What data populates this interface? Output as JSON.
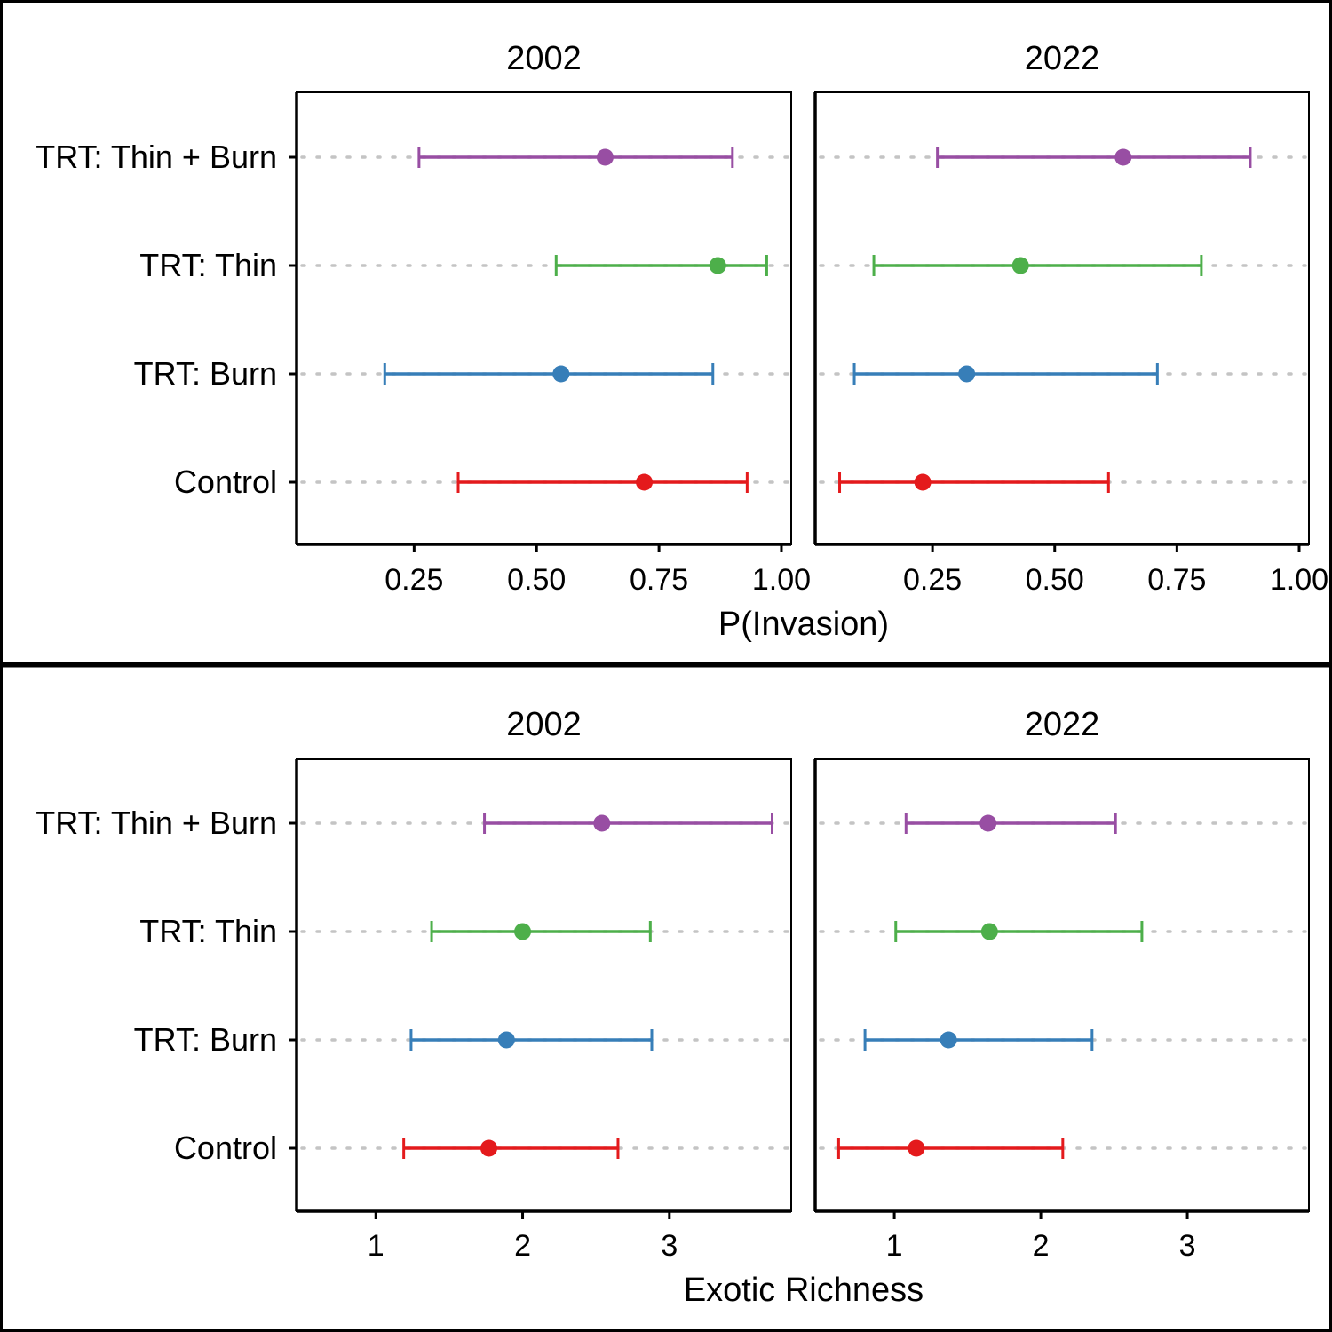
{
  "chart_data": [
    {
      "type": "scatter",
      "xlabel": "P(Invasion)",
      "categories": [
        "Control",
        "TRT: Burn",
        "TRT: Thin",
        "TRT: Thin + Burn"
      ],
      "xticks": [
        0.25,
        0.5,
        0.75,
        1.0
      ],
      "xtick_labels": [
        "0.25",
        "0.50",
        "0.75",
        "1.00"
      ],
      "xlim": [
        0.01,
        1.02
      ],
      "facets": [
        {
          "title": "2002",
          "points": [
            {
              "category": "Control",
              "estimate": 0.72,
              "lower": 0.34,
              "upper": 0.93
            },
            {
              "category": "TRT: Burn",
              "estimate": 0.55,
              "lower": 0.19,
              "upper": 0.86
            },
            {
              "category": "TRT: Thin",
              "estimate": 0.87,
              "lower": 0.54,
              "upper": 0.97
            },
            {
              "category": "TRT: Thin + Burn",
              "estimate": 0.64,
              "lower": 0.26,
              "upper": 0.9
            }
          ]
        },
        {
          "title": "2022",
          "points": [
            {
              "category": "Control",
              "estimate": 0.23,
              "lower": 0.06,
              "upper": 0.61
            },
            {
              "category": "TRT: Burn",
              "estimate": 0.32,
              "lower": 0.09,
              "upper": 0.71
            },
            {
              "category": "TRT: Thin",
              "estimate": 0.43,
              "lower": 0.13,
              "upper": 0.8
            },
            {
              "category": "TRT: Thin + Burn",
              "estimate": 0.64,
              "lower": 0.26,
              "upper": 0.9
            }
          ]
        }
      ]
    },
    {
      "type": "scatter",
      "xlabel": "Exotic Richness",
      "categories": [
        "Control",
        "TRT: Burn",
        "TRT: Thin",
        "TRT: Thin + Burn"
      ],
      "xticks": [
        1,
        2,
        3
      ],
      "xtick_labels": [
        "1",
        "2",
        "3"
      ],
      "xlim": [
        0.46,
        3.83
      ],
      "facets": [
        {
          "title": "2002",
          "points": [
            {
              "category": "Control",
              "estimate": 1.77,
              "lower": 1.19,
              "upper": 2.65
            },
            {
              "category": "TRT: Burn",
              "estimate": 1.89,
              "lower": 1.24,
              "upper": 2.88
            },
            {
              "category": "TRT: Thin",
              "estimate": 2.0,
              "lower": 1.38,
              "upper": 2.87
            },
            {
              "category": "TRT: Thin + Burn",
              "estimate": 2.54,
              "lower": 1.74,
              "upper": 3.7
            }
          ]
        },
        {
          "title": "2022",
          "points": [
            {
              "category": "Control",
              "estimate": 1.15,
              "lower": 0.62,
              "upper": 2.15
            },
            {
              "category": "TRT: Burn",
              "estimate": 1.37,
              "lower": 0.8,
              "upper": 2.35
            },
            {
              "category": "TRT: Thin",
              "estimate": 1.65,
              "lower": 1.01,
              "upper": 2.69
            },
            {
              "category": "TRT: Thin + Burn",
              "estimate": 1.64,
              "lower": 1.08,
              "upper": 2.51
            }
          ]
        }
      ]
    }
  ],
  "colors": {
    "Control": "#e41a1c",
    "TRT: Burn": "#377eb8",
    "TRT: Thin": "#4daf4a",
    "TRT: Thin + Burn": "#984ea3"
  }
}
